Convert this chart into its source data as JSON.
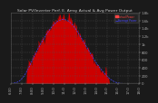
{
  "title": "Solar PV/Inverter Perf. E. Array Actual & Avg Power Output",
  "title_fontsize": 3.2,
  "bg_color": "#1a1a1a",
  "plot_bg_color": "#1a1a1a",
  "grid_color": "#555555",
  "fill_color": "#cc0000",
  "line_color": "#cc0000",
  "avg_line_color": "#4444ff",
  "legend_actual_color": "#ff4444",
  "legend_avg_color": "#4444ff",
  "legend_labels": [
    "Actual Power",
    "Average Power"
  ],
  "tick_color": "#aaaaaa",
  "title_color": "#cccccc",
  "spine_color": "#555555",
  "tick_fontsize": 2.8,
  "ylim": [
    0,
    1800
  ],
  "yticks": [
    0,
    200,
    400,
    600,
    800,
    1000,
    1200,
    1400,
    1600,
    1800
  ],
  "ytick_labels": [
    "0",
    "200",
    "400",
    "600",
    "800",
    "1k",
    "1.2k",
    "1.4k",
    "1.6k",
    "1.8k"
  ],
  "n_points": 144
}
